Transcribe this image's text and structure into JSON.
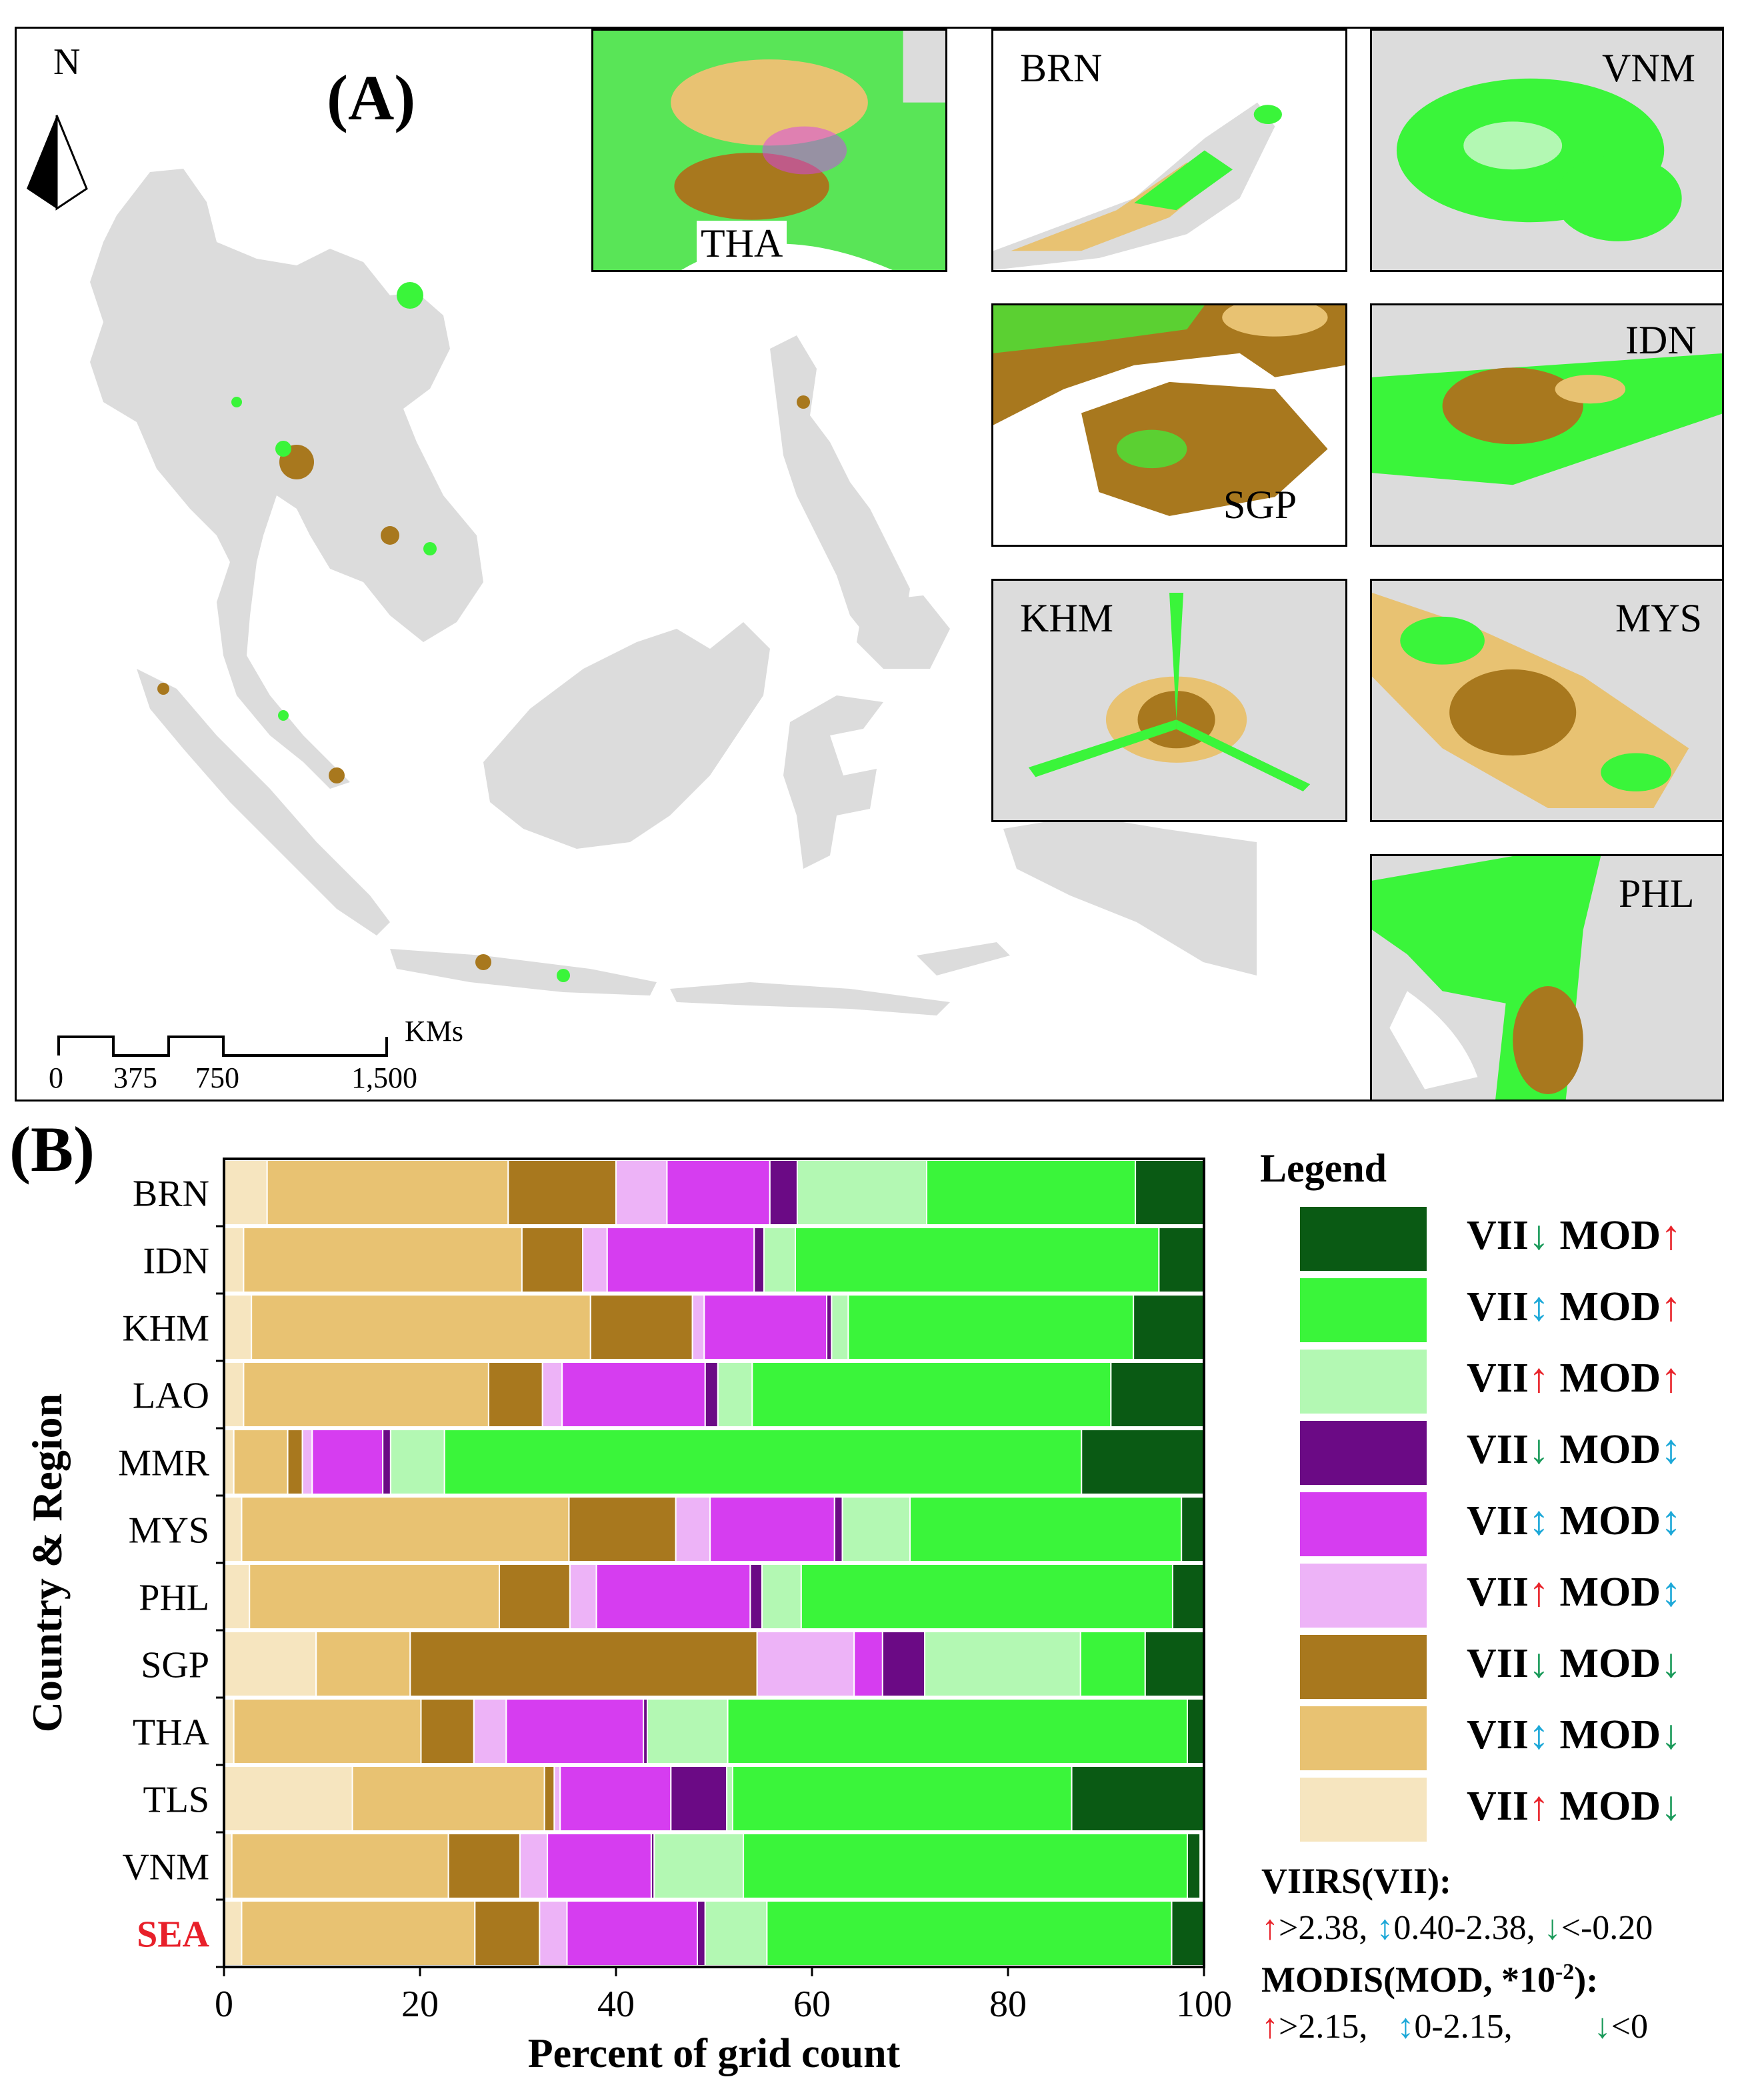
{
  "panel_a": {
    "label": "(A)",
    "north": "N",
    "scale_ticks": [
      "0",
      "375",
      "750",
      "1,500"
    ],
    "scale_unit": "KMs",
    "insets": [
      {
        "code": "THA"
      },
      {
        "code": "BRN"
      },
      {
        "code": "VNM"
      },
      {
        "code": "SGP"
      },
      {
        "code": "IDN"
      },
      {
        "code": "KHM"
      },
      {
        "code": "MYS"
      },
      {
        "code": "PHL"
      }
    ]
  },
  "panel_b": {
    "label": "(B)",
    "legend_title": "Legend",
    "legend_items": [
      {
        "vii": "VII",
        "vii_arrow": "↓",
        "vii_cls": "down",
        "mod": "MOD",
        "mod_arrow": "↑",
        "mod_cls": "up",
        "color": "#0a5a14"
      },
      {
        "vii": "VII",
        "vii_arrow": "↕",
        "vii_cls": "mid",
        "mod": "MOD",
        "mod_arrow": "↑",
        "mod_cls": "up",
        "color": "#3af53a"
      },
      {
        "vii": "VII",
        "vii_arrow": "↑",
        "vii_cls": "up",
        "mod": "MOD",
        "mod_arrow": "↑",
        "mod_cls": "up",
        "color": "#b3f8b3"
      },
      {
        "vii": "VII",
        "vii_arrow": "↓",
        "vii_cls": "down",
        "mod": "MOD",
        "mod_arrow": "↕",
        "mod_cls": "mid",
        "color": "#6b0a85"
      },
      {
        "vii": "VII",
        "vii_arrow": "↕",
        "vii_cls": "mid",
        "mod": "MOD",
        "mod_arrow": "↕",
        "mod_cls": "mid",
        "color": "#d63df0"
      },
      {
        "vii": "VII",
        "vii_arrow": "↑",
        "vii_cls": "up",
        "mod": "MOD",
        "mod_arrow": "↕",
        "mod_cls": "mid",
        "color": "#edb3f7"
      },
      {
        "vii": "VII",
        "vii_arrow": "↓",
        "vii_cls": "down",
        "mod": "MOD",
        "mod_arrow": "↓",
        "mod_cls": "down",
        "color": "#a8781e"
      },
      {
        "vii": "VII",
        "vii_arrow": "↕",
        "vii_cls": "mid",
        "mod": "MOD",
        "mod_arrow": "↓",
        "mod_cls": "down",
        "color": "#e8c272"
      },
      {
        "vii": "VII",
        "vii_arrow": "↑",
        "vii_cls": "up",
        "mod": "MOD",
        "mod_arrow": "↓",
        "mod_cls": "down",
        "color": "#f6e5bf"
      }
    ],
    "viirs_title": "VIIRS(VII):",
    "viirs_thresholds": [
      {
        "arrow": "↑",
        "cls": "up",
        "text": ">2.38,"
      },
      {
        "arrow": "↕",
        "cls": "mid",
        "text": "0.40-2.38,"
      },
      {
        "arrow": "↓",
        "cls": "down",
        "text": "<-0.20"
      }
    ],
    "modis_title_main": "MODIS(MOD, *10",
    "modis_title_exp": "-2",
    "modis_title_end": "):",
    "modis_thresholds": [
      {
        "arrow": "↑",
        "cls": "up",
        "text": ">2.15,"
      },
      {
        "arrow": "↕",
        "cls": "mid",
        "text": "0-2.15,"
      },
      {
        "arrow": "↓",
        "cls": "down",
        "text": "<0"
      }
    ]
  },
  "chart_data": {
    "type": "bar",
    "orientation": "horizontal",
    "stacked": true,
    "xlabel": "Percent of grid count",
    "ylabel": "Country & Region",
    "xlim": [
      0,
      100
    ],
    "xticks": [
      0,
      20,
      40,
      60,
      80,
      100
    ],
    "categories": [
      "BRN",
      "IDN",
      "KHM",
      "LAO",
      "MMR",
      "MYS",
      "PHL",
      "SGP",
      "THA",
      "TLS",
      "VNM",
      "SEA"
    ],
    "highlight_category": "SEA",
    "highlight_color": "#e8202a",
    "series": [
      {
        "name": "VII↑ MOD↓",
        "color": "#f6e5bf",
        "values": [
          4.4,
          2.0,
          2.8,
          2.0,
          1.0,
          1.8,
          2.6,
          9.4,
          1.0,
          13.1,
          0.8,
          1.8
        ]
      },
      {
        "name": "VII↕ MOD↓",
        "color": "#e8c272",
        "values": [
          24.6,
          28.4,
          34.6,
          25.0,
          5.5,
          33.4,
          25.5,
          9.6,
          19.1,
          19.6,
          22.1,
          23.8
        ]
      },
      {
        "name": "VII↓ MOD↓",
        "color": "#a8781e",
        "values": [
          11.0,
          6.2,
          10.4,
          5.5,
          1.5,
          10.9,
          7.2,
          35.4,
          5.4,
          1.0,
          7.3,
          6.6
        ]
      },
      {
        "name": "VII↑ MOD↕",
        "color": "#edb3f7",
        "values": [
          5.2,
          2.5,
          1.2,
          2.0,
          1.0,
          3.5,
          2.7,
          9.9,
          3.3,
          0.6,
          2.8,
          2.8
        ]
      },
      {
        "name": "VII↕ MOD↕",
        "color": "#d63df0",
        "values": [
          10.5,
          15.0,
          12.5,
          14.6,
          7.2,
          12.7,
          15.7,
          2.9,
          14.0,
          11.3,
          10.6,
          13.3
        ]
      },
      {
        "name": "VII↓ MOD↕",
        "color": "#6b0a85",
        "values": [
          2.8,
          1.0,
          0.5,
          1.3,
          0.8,
          0.8,
          1.2,
          4.3,
          0.4,
          5.7,
          0.3,
          0.8
        ]
      },
      {
        "name": "VII↑ MOD↑",
        "color": "#b3f8b3",
        "values": [
          13.2,
          3.2,
          1.7,
          3.5,
          5.5,
          6.9,
          4.0,
          15.9,
          8.2,
          0.6,
          9.1,
          6.3
        ]
      },
      {
        "name": "VII↕ MOD↑",
        "color": "#3af53a",
        "values": [
          21.3,
          37.1,
          29.1,
          36.6,
          65.0,
          27.7,
          37.9,
          6.6,
          46.9,
          34.6,
          45.3,
          41.3
        ]
      },
      {
        "name": "VII↓ MOD↑",
        "color": "#0a5a14",
        "values": [
          7.0,
          4.6,
          7.2,
          9.5,
          12.5,
          2.3,
          3.2,
          6.0,
          1.7,
          13.5,
          1.3,
          3.3
        ]
      }
    ]
  }
}
